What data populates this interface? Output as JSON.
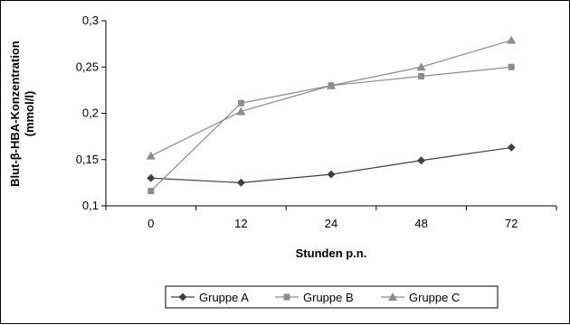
{
  "chart_data": {
    "type": "line",
    "categories": [
      "0",
      "12",
      "24",
      "48",
      "72"
    ],
    "xlabel": "Stunden p.n.",
    "ylabel_line1": "Blut-β-HBA-Konzentration",
    "ylabel_line2": "(mmol/l)",
    "ylim": [
      0.1,
      0.3
    ],
    "yticks": [
      "0,1",
      "0,15",
      "0,2",
      "0,25",
      "0,3"
    ],
    "grid": false,
    "legend_position": "bottom",
    "series": [
      {
        "name": "Gruppe A",
        "marker": "diamond",
        "color": "#404040",
        "values": [
          0.13,
          0.125,
          0.134,
          0.149,
          0.163
        ]
      },
      {
        "name": "Gruppe B",
        "marker": "square",
        "color": "#8c8c8c",
        "values": [
          0.116,
          0.211,
          0.23,
          0.24,
          0.25
        ]
      },
      {
        "name": "Gruppe C",
        "marker": "triangle",
        "color": "#8c8c8c",
        "values": [
          0.154,
          0.202,
          0.23,
          0.25,
          0.279
        ]
      }
    ]
  }
}
